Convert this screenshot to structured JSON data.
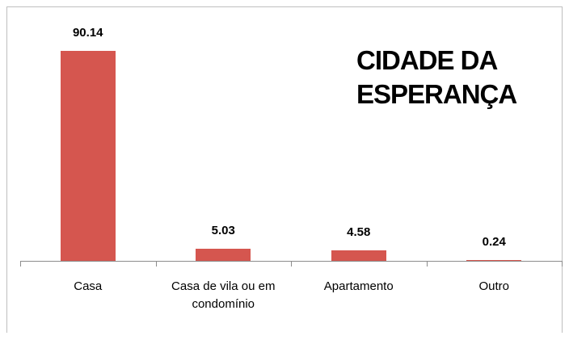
{
  "chart_data": {
    "type": "bar",
    "title": "CIDADE DA ESPERANÇA",
    "categories": [
      "Casa",
      "Casa de vila ou em condomínio",
      "Apartamento",
      "Outro"
    ],
    "values": [
      90.14,
      5.03,
      4.58,
      0.24
    ],
    "color": "#d5564f"
  }
}
